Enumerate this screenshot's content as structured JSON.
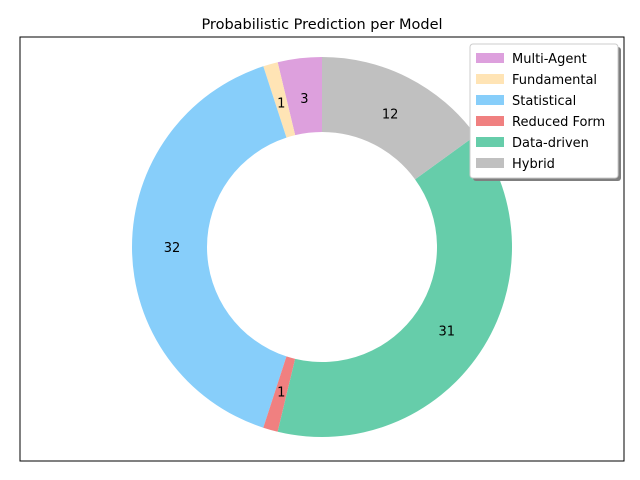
{
  "chart_data": {
    "type": "pie",
    "title": "Probabilistic Prediction per Model",
    "donut": true,
    "start_angle_deg": 90,
    "direction": "counterclockwise",
    "categories": [
      "Multi-Agent",
      "Fundamental",
      "Statistical",
      "Reduced Form",
      "Data-driven",
      "Hybrid"
    ],
    "values": [
      3,
      1,
      32,
      1,
      31,
      12
    ],
    "colors": [
      "#dda0dd",
      "#ffe4b5",
      "#87cefa",
      "#f08080",
      "#66cdaa",
      "#c0c0c0"
    ],
    "legend_position": "top-right"
  }
}
